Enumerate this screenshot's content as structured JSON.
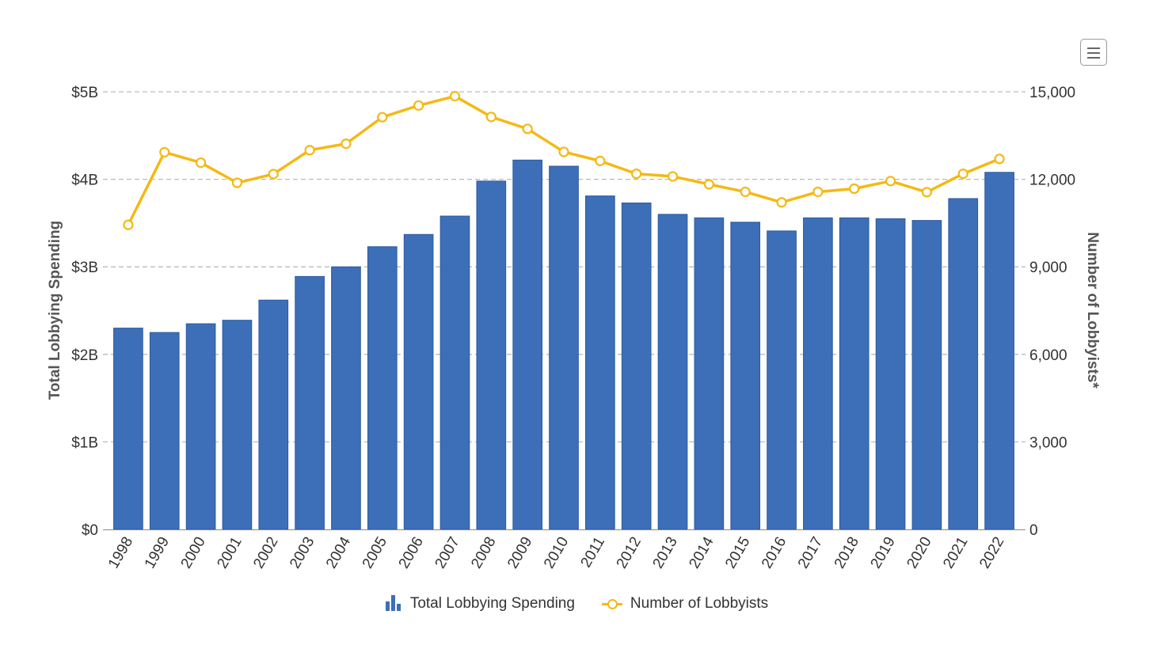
{
  "menu": {
    "icon": "hamburger-menu-icon"
  },
  "colors": {
    "bar": "#3d6fb8",
    "bar_stroke": "#2c5aa0",
    "line": "#f5b915",
    "grid": "#bbbbbb"
  },
  "chart_data": {
    "type": "bar",
    "categories": [
      "1998",
      "1999",
      "2000",
      "2001",
      "2002",
      "2003",
      "2004",
      "2005",
      "2006",
      "2007",
      "2008",
      "2009",
      "2010",
      "2011",
      "2012",
      "2013",
      "2014",
      "2015",
      "2016",
      "2017",
      "2018",
      "2019",
      "2020",
      "2021",
      "2022"
    ],
    "series": [
      {
        "name": "Total Lobbying Spending",
        "type": "bar",
        "axis": "left",
        "unit": "USD billions",
        "values": [
          2.3,
          2.25,
          2.35,
          2.39,
          2.62,
          2.89,
          3.0,
          3.23,
          3.37,
          3.58,
          3.98,
          4.22,
          4.15,
          3.81,
          3.73,
          3.6,
          3.56,
          3.51,
          3.41,
          3.56,
          3.56,
          3.55,
          3.53,
          3.78,
          4.08
        ]
      },
      {
        "name": "Number of Lobbyists",
        "type": "line",
        "axis": "right",
        "values": [
          10440,
          12930,
          12570,
          11880,
          12180,
          13000,
          13220,
          14130,
          14530,
          14850,
          14140,
          13730,
          12940,
          12630,
          12190,
          12100,
          11830,
          11570,
          11210,
          11570,
          11680,
          11940,
          11560,
          12190,
          12700
        ]
      }
    ],
    "ylabel": "Total Lobbying Spending",
    "y2label": "Number of Lobbyists*",
    "yticks": [
      "$0",
      "$1B",
      "$2B",
      "$3B",
      "$4B",
      "$5B"
    ],
    "y2ticks": [
      "0",
      "3,000",
      "6,000",
      "9,000",
      "12,000",
      "15,000"
    ],
    "ylim": [
      0,
      5
    ],
    "y2lim": [
      0,
      15000
    ],
    "grid": "horizontal dashed",
    "legend_position": "bottom-center"
  }
}
